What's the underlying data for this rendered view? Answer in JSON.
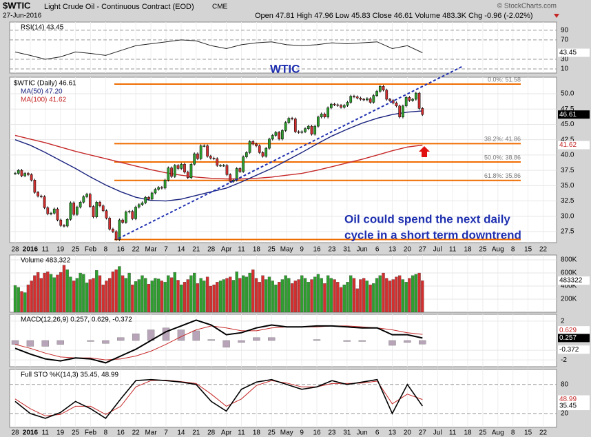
{
  "chart_data": {
    "type": "stock",
    "symbol": "$WTIC",
    "title": "Light Crude Oil - Continuous Contract (EOD)",
    "exchange": "CME",
    "date": "27-Jun-2016",
    "quote": "Open 47.81 High 47.96 Low 45.83 Close 46.61 Volume 483.3K Chg -0.96 (-2.02%)",
    "credit": "© StockCharts.com",
    "annotation_title": "WTIC",
    "annotation_lines": [
      "Oil could spend the next daily",
      "cycle in a short term downtrend"
    ],
    "categories": [
      "28",
      "2016",
      "11",
      "19",
      "25",
      "Feb",
      "8",
      "16",
      "22",
      "Mar",
      "7",
      "14",
      "21",
      "28",
      "Apr",
      "11",
      "18",
      "25",
      "May",
      "9",
      "16",
      "23",
      "31",
      "Jun",
      "6",
      "13",
      "20",
      "27",
      "Jul",
      "11",
      "18",
      "25",
      "Aug",
      "8",
      "15",
      "22"
    ],
    "price_legend": "$WTIC (Daily) 46.61",
    "close_last": 46.61,
    "close": [
      37.0,
      37.5,
      36.6,
      37.0,
      36.8,
      35.9,
      33.9,
      33.3,
      33.2,
      31.4,
      30.4,
      30.5,
      31.2,
      29.4,
      28.5,
      28.4,
      29.5,
      32.2,
      30.3,
      31.5,
      32.3,
      33.2,
      33.6,
      31.6,
      29.9,
      32.3,
      31.7,
      30.9,
      29.7,
      27.9,
      27.5,
      26.2,
      29.4,
      29.0,
      30.7,
      30.8,
      29.6,
      31.5,
      31.9,
      32.2,
      33.1,
      32.8,
      33.8,
      34.4,
      34.7,
      34.6,
      35.9,
      37.9,
      36.5,
      38.3,
      37.8,
      38.5,
      37.2,
      36.3,
      38.5,
      40.2,
      39.4,
      41.5,
      41.5,
      39.8,
      39.5,
      39.4,
      38.3,
      38.3,
      38.3,
      36.8,
      35.7,
      35.9,
      37.8,
      37.3,
      39.7,
      40.4,
      42.2,
      41.8,
      41.5,
      40.4,
      39.8,
      41.1,
      42.6,
      43.2,
      43.7,
      42.6,
      44.0,
      45.3,
      46.0,
      45.9,
      43.8,
      43.7,
      43.8,
      44.3,
      44.7,
      43.4,
      44.7,
      46.2,
      46.7,
      46.2,
      47.7,
      48.3,
      48.2,
      48.1,
      47.8,
      48.1,
      48.6,
      49.6,
      49.5,
      49.3,
      49.1,
      49.0,
      49.2,
      48.6,
      49.7,
      50.4,
      51.2,
      50.6,
      49.1,
      48.9,
      48.5,
      48.0,
      46.2,
      48.0,
      49.4,
      48.9,
      49.1,
      50.1,
      47.6,
      46.61
    ],
    "ma50": {
      "name": "MA(50) 47.20",
      "color": "#1a237e",
      "values": [
        42.5,
        41.6,
        40.4,
        39.1,
        37.8,
        36.4,
        35.1,
        34.0,
        33.1,
        32.6,
        32.5,
        32.8,
        33.4,
        34.0,
        34.6,
        35.6,
        36.7,
        37.8,
        39.1,
        40.4,
        41.8,
        43.1,
        44.2,
        45.2,
        46.0,
        46.6,
        47.0,
        47.2,
        null,
        null,
        null,
        null,
        null,
        null,
        null,
        null
      ]
    },
    "ma100": {
      "name": "MA(100) 41.62",
      "color": "#c62828",
      "last": 41.62,
      "values": [
        43.2,
        42.6,
        42.0,
        41.3,
        40.6,
        40.0,
        39.4,
        38.8,
        38.2,
        37.6,
        37.1,
        36.7,
        36.4,
        36.2,
        36.1,
        36.1,
        36.2,
        36.4,
        36.7,
        37.0,
        37.5,
        38.1,
        38.7,
        39.3,
        40.0,
        40.7,
        41.3,
        41.62,
        null,
        null,
        null,
        null,
        null,
        null,
        null,
        null
      ]
    },
    "fib_levels": [
      51.58,
      41.86,
      38.86,
      35.86,
      26.2
    ],
    "fib_labels": [
      "0.0%: 51.58",
      "38.2%: 41.86",
      "50.0%: 38.86",
      "61.8%: 35.86",
      null
    ],
    "ylim": [
      25.7,
      52.7
    ],
    "yticks": [
      {
        "value": 50,
        "label": "50.0"
      },
      47.5,
      {
        "value": 45,
        "label": "45.0"
      },
      42.5,
      {
        "value": 40,
        "label": "40.0"
      },
      37.5,
      {
        "value": 35,
        "label": "35.0"
      },
      32.5,
      {
        "value": 30,
        "label": "30.0"
      },
      27.5
    ],
    "rsi": {
      "legend": "RSI(14) 43.45",
      "last": 43.45,
      "ylim": [
        1.4,
        107
      ],
      "yticks": [
        90,
        70,
        30,
        10
      ],
      "values": [
        45,
        38,
        30,
        35,
        45,
        42,
        38,
        48,
        58,
        62,
        66,
        70,
        68,
        58,
        52,
        60,
        64,
        66,
        60,
        58,
        60,
        64,
        62,
        64,
        66,
        52,
        58,
        43.45,
        null,
        null,
        null,
        null,
        null,
        null,
        null,
        null
      ]
    },
    "volume": {
      "legend": "Volume 483,322",
      "last": 483322,
      "ylim": [
        0,
        874000
      ],
      "yticks": [
        {
          "value": 800000,
          "label": "800K"
        },
        {
          "value": 600000,
          "label": "600K"
        },
        {
          "value": 400000,
          "label": "400K"
        },
        {
          "value": 200000,
          "label": "200K"
        }
      ],
      "values": [
        410000,
        380000,
        320000,
        300000,
        420000,
        480000,
        560000,
        610000,
        520000,
        600000,
        620000,
        580000,
        530000,
        570000,
        610000,
        720000,
        650000,
        540000,
        480000,
        520000,
        600000,
        580000,
        450000,
        500000,
        520000,
        640000,
        560000,
        420000,
        480000,
        520000,
        620000,
        650000,
        700000,
        560000,
        520000,
        600000,
        420000,
        470000,
        500000,
        560000,
        520000,
        430000,
        480000,
        520000,
        510000,
        480000,
        460000,
        560000,
        530000,
        610000,
        490000,
        420000,
        460000,
        500000,
        560000,
        600000,
        440000,
        520000,
        480000,
        540000,
        400000,
        420000,
        460000,
        480000,
        500000,
        520000,
        540000,
        490000,
        620000,
        520000,
        560000,
        540000,
        600000,
        650000,
        520000,
        460000,
        560000,
        500000,
        540000,
        480000,
        420000,
        460000,
        500000,
        560000,
        520000,
        440000,
        480000,
        500000,
        560000,
        520000,
        460000,
        500000,
        540000,
        580000,
        520000,
        440000,
        560000,
        520000,
        500000,
        460000,
        380000,
        420000,
        460000,
        560000,
        520000,
        360000,
        500000,
        520000,
        480000,
        420000,
        440000,
        520000,
        560000,
        600000,
        520000,
        480000,
        500000,
        540000,
        560000,
        500000,
        460000,
        520000,
        560000,
        580000,
        600000,
        483322
      ]
    },
    "macd": {
      "legend": "MACD(12,26,9) 0.257, 0.629, -0.372",
      "ylim": [
        -2.7,
        2.7
      ],
      "yticks": [
        2,
        -1,
        -2
      ],
      "macd_last": 0.257,
      "signal_last": 0.629,
      "hist_last": -0.372,
      "macd_values": [
        -0.8,
        -1.4,
        -1.9,
        -2.1,
        -1.8,
        -1.9,
        -2.3,
        -1.6,
        -0.9,
        0.0,
        0.9,
        1.5,
        2.1,
        1.6,
        0.6,
        0.8,
        1.3,
        1.6,
        1.4,
        1.4,
        1.5,
        1.5,
        1.4,
        1.3,
        1.3,
        0.6,
        0.6,
        0.257,
        null,
        null,
        null,
        null,
        null,
        null,
        null,
        null
      ],
      "signal_values": [
        -0.4,
        -0.8,
        -1.3,
        -1.7,
        -1.8,
        -1.8,
        -2.0,
        -1.9,
        -1.6,
        -1.1,
        -0.4,
        0.4,
        1.1,
        1.5,
        1.3,
        1.0,
        1.0,
        1.3,
        1.4,
        1.4,
        1.4,
        1.5,
        1.5,
        1.4,
        1.3,
        1.1,
        0.8,
        0.629,
        null,
        null,
        null,
        null,
        null,
        null,
        null,
        null
      ],
      "hist_values": [
        -0.4,
        -0.6,
        -0.6,
        -0.4,
        0.0,
        -0.1,
        -0.3,
        0.3,
        0.7,
        1.1,
        1.3,
        1.1,
        1.0,
        0.1,
        -0.7,
        -0.2,
        0.3,
        0.3,
        0.0,
        0.0,
        0.1,
        0.0,
        -0.1,
        -0.1,
        0.0,
        -0.5,
        -0.2,
        -0.372,
        null,
        null,
        null,
        null,
        null,
        null,
        null,
        null
      ]
    },
    "sto": {
      "legend": "Full STO %K(14,3) 35.45, 48.99",
      "ylim": [
        -8.6,
        111
      ],
      "yticks": [
        80,
        20
      ],
      "k_last": 35.45,
      "d_last": 48.99,
      "k_values": [
        45,
        20,
        10,
        22,
        45,
        30,
        10,
        50,
        88,
        90,
        88,
        85,
        80,
        45,
        25,
        70,
        85,
        90,
        80,
        70,
        75,
        88,
        80,
        85,
        90,
        20,
        80,
        35.45,
        null,
        null,
        null,
        null,
        null,
        null,
        null,
        null
      ],
      "d_values": [
        50,
        30,
        15,
        18,
        35,
        35,
        18,
        35,
        75,
        88,
        89,
        86,
        82,
        60,
        35,
        50,
        78,
        88,
        83,
        75,
        75,
        82,
        82,
        83,
        87,
        40,
        60,
        48.99,
        null,
        null,
        null,
        null,
        null,
        null,
        null,
        null
      ]
    }
  }
}
